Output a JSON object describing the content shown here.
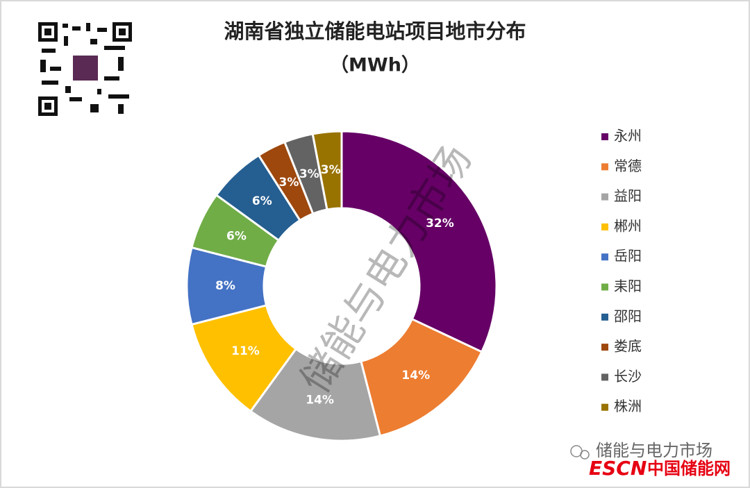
{
  "chart_data": {
    "type": "donut",
    "title": "湖南省独立储能电站项目地市分布",
    "subtitle": "（MWh）",
    "categories": [
      "永州",
      "常德",
      "益阳",
      "郴州",
      "岳阳",
      "耒阳",
      "邵阳",
      "娄底",
      "长沙",
      "株洲"
    ],
    "values": [
      32,
      14,
      14,
      11,
      8,
      6,
      6,
      3,
      3,
      3
    ],
    "value_labels": [
      "32%",
      "14%",
      "14%",
      "11%",
      "8%",
      "6%",
      "6%",
      "3%",
      "3%",
      "3%"
    ],
    "colors": [
      "#660066",
      "#ED7D31",
      "#A5A5A5",
      "#FFC000",
      "#4472C4",
      "#70AD47",
      "#255E91",
      "#9E480E",
      "#636363",
      "#997300"
    ],
    "legend": "right"
  },
  "watermark": "储能与电力市场",
  "footer": {
    "account": "储能与电力市场",
    "logo": "ESCN",
    "site": "中国储能网"
  }
}
